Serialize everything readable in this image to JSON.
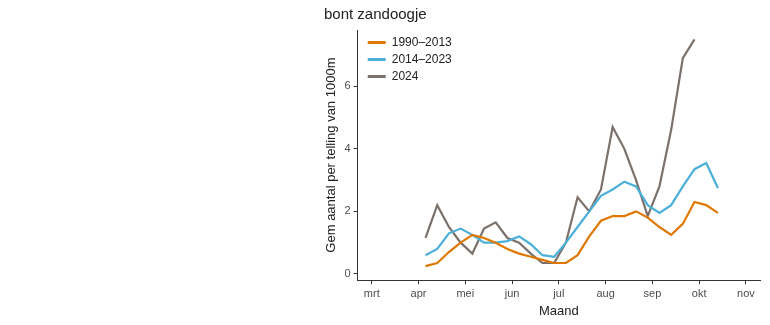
{
  "chart_data": {
    "type": "line",
    "title": "bont zandoogje",
    "x_label": "Maand",
    "y_label": "Gem aantal per telling van 1000m",
    "x": [
      4.15,
      4.4,
      4.65,
      4.9,
      5.15,
      5.4,
      5.65,
      5.9,
      6.15,
      6.4,
      6.65,
      6.9,
      7.15,
      7.4,
      7.65,
      7.9,
      8.15,
      8.4,
      8.65,
      8.9,
      9.15,
      9.4,
      9.65,
      9.9,
      10.15,
      10.4
    ],
    "series": [
      {
        "name": "1990–2013",
        "color": "#e07800",
        "values": [
          0.25,
          0.35,
          0.7,
          1.0,
          1.25,
          1.15,
          1.0,
          0.8,
          0.65,
          0.55,
          0.45,
          0.35,
          0.35,
          0.6,
          1.2,
          1.7,
          1.85,
          1.85,
          2.0,
          1.8,
          1.5,
          1.25,
          1.6,
          2.3,
          2.2,
          1.95
        ]
      },
      {
        "name": "2014–2023",
        "color": "#4ab0d9",
        "values": [
          0.6,
          0.8,
          1.3,
          1.45,
          1.25,
          1.0,
          1.0,
          1.05,
          1.2,
          0.95,
          0.6,
          0.55,
          1.0,
          1.5,
          2.0,
          2.5,
          2.7,
          2.95,
          2.8,
          2.2,
          1.95,
          2.2,
          2.8,
          3.35,
          3.55,
          2.75
        ]
      },
      {
        "name": "2024",
        "color": "#7b716a",
        "values": [
          1.15,
          2.2,
          1.5,
          1.0,
          0.65,
          1.45,
          1.65,
          1.15,
          1.0,
          0.65,
          0.35,
          0.35,
          1.0,
          2.45,
          2.0,
          2.7,
          4.7,
          4.0,
          3.0,
          1.85,
          2.8,
          4.6,
          6.9,
          7.5,
          null,
          null
        ]
      }
    ],
    "xlim": [
      2.7,
      11.3
    ],
    "xticks": [
      {
        "value": 3,
        "label": "mrt"
      },
      {
        "value": 4,
        "label": "apr"
      },
      {
        "value": 5,
        "label": "mei"
      },
      {
        "value": 6,
        "label": "jun"
      },
      {
        "value": 7,
        "label": "jul"
      },
      {
        "value": 8,
        "label": "aug"
      },
      {
        "value": 9,
        "label": "sep"
      },
      {
        "value": 10,
        "label": "okt"
      },
      {
        "value": 11,
        "label": "nov"
      }
    ],
    "ylim": [
      -0.2,
      7.8
    ],
    "yticks": [
      0,
      2,
      4,
      6
    ],
    "grid": false,
    "legend": "top left"
  }
}
